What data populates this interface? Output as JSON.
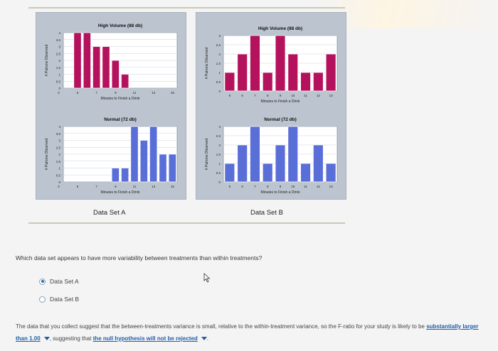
{
  "question": "Which data set appears to have more variability between treatments than within treatments?",
  "options": [
    {
      "label": "Data Set A",
      "selected": true
    },
    {
      "label": "Data Set B",
      "selected": false
    }
  ],
  "conclusion": {
    "prefix": "The data that you collect suggest that the between-treatments variance is small, relative to the within-treatment variance, so the F-ratio for your study is likely to be",
    "dropdown1": "substantially larger than 1.00",
    "middle": ", suggesting that",
    "dropdown2": "the null hypothesis will not be rejected",
    "suffix": "."
  },
  "data_set_a_label": "Data Set A",
  "data_set_b_label": "Data Set B",
  "colors": {
    "high_bar": "#b5125e",
    "normal_bar": "#5a6ed8",
    "panel_bg": "#bcc5cf",
    "link": "#1f5ea8"
  },
  "chart_data": [
    {
      "id": "a-high",
      "type": "bar",
      "title": "High Volume (88 db)",
      "xlabel": "Minutes to Finish a Drink",
      "ylabel": "# Patrons Observed",
      "x_ticks": [
        "3",
        "5",
        "7",
        "9",
        "11",
        "13",
        "15"
      ],
      "y_ticks": [
        "0",
        "0.5",
        "1",
        "1.5",
        "2",
        "2.5",
        "3",
        "3.5",
        "4"
      ],
      "ylim": [
        0,
        4
      ],
      "x": [
        5,
        6,
        7,
        8,
        9,
        10
      ],
      "values": [
        4,
        4,
        3,
        3,
        2,
        1
      ]
    },
    {
      "id": "a-normal",
      "type": "bar",
      "title": "Normal (72 db)",
      "xlabel": "Minutes to Finish a Drink",
      "ylabel": "# Patrons Observed",
      "x_ticks": [
        "3",
        "5",
        "7",
        "9",
        "11",
        "13",
        "15"
      ],
      "y_ticks": [
        "0",
        "0.5",
        "1",
        "1.5",
        "2",
        "2.5",
        "3",
        "3.5",
        "4"
      ],
      "ylim": [
        0,
        4
      ],
      "x": [
        9,
        10,
        11,
        12,
        13,
        14,
        15
      ],
      "values": [
        1,
        1,
        4,
        3,
        4,
        2,
        2
      ]
    },
    {
      "id": "b-high",
      "type": "bar",
      "title": "High Volume (88 db)",
      "xlabel": "Minutes to Finish a Drink",
      "ylabel": "# Patrons Observed",
      "x_ticks": [
        "5",
        "6",
        "7",
        "8",
        "9",
        "10",
        "11",
        "12",
        "13"
      ],
      "y_ticks": [
        "0",
        "0.5",
        "1",
        "1.5",
        "2",
        "2.5",
        "3"
      ],
      "ylim": [
        0,
        3
      ],
      "x": [
        5,
        6,
        7,
        8,
        9,
        10,
        11,
        12,
        13
      ],
      "values": [
        1,
        2,
        3,
        1,
        3,
        2,
        1,
        1,
        2
      ]
    },
    {
      "id": "b-normal",
      "type": "bar",
      "title": "Normal (72 db)",
      "xlabel": "Minutes to Finish a Drink",
      "ylabel": "# Patrons Observed",
      "x_ticks": [
        "5",
        "6",
        "7",
        "8",
        "9",
        "10",
        "11",
        "12",
        "13"
      ],
      "y_ticks": [
        "0",
        "0.5",
        "1",
        "1.5",
        "2",
        "2.5",
        "3"
      ],
      "ylim": [
        0,
        3
      ],
      "x": [
        5,
        6,
        7,
        8,
        9,
        10,
        11,
        12,
        13
      ],
      "values": [
        1,
        2,
        3,
        1,
        2,
        3,
        1,
        2,
        1
      ]
    }
  ]
}
